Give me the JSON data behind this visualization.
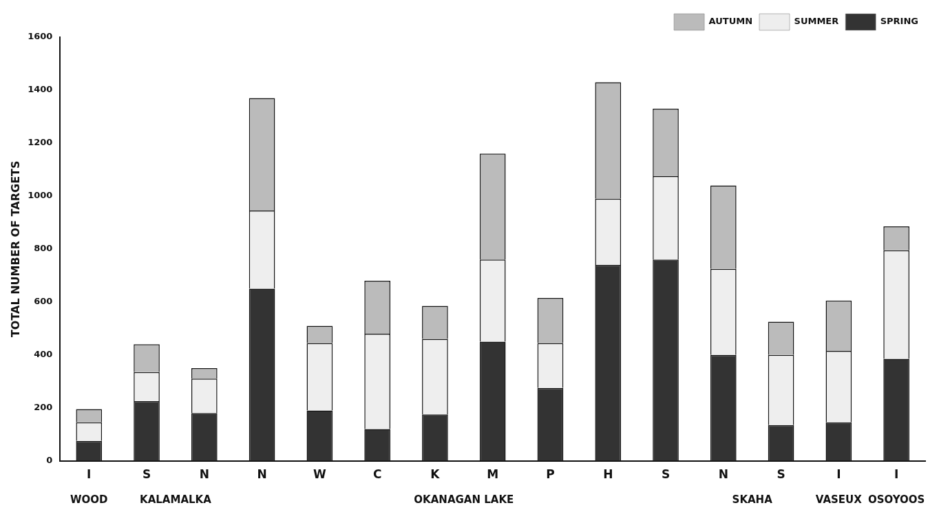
{
  "chart_data": {
    "type": "bar",
    "stacked": true,
    "ylabel": "TOTAL NUMBER OF TARGETS",
    "categories": [
      "I",
      "S",
      "N",
      "N",
      "W",
      "C",
      "K",
      "M",
      "P",
      "H",
      "S",
      "N",
      "S",
      "I",
      "I"
    ],
    "series": [
      {
        "name": "SPRING",
        "color": "#333333",
        "values": [
          75,
          225,
          180,
          650,
          190,
          120,
          175,
          450,
          275,
          740,
          760,
          400,
          135,
          145,
          385
        ]
      },
      {
        "name": "SUMMER",
        "color": "#eeeeee",
        "values": [
          70,
          110,
          130,
          295,
          255,
          360,
          285,
          310,
          170,
          250,
          315,
          325,
          265,
          270,
          410
        ]
      },
      {
        "name": "AUTUMN",
        "color": "#bbbbbb",
        "values": [
          50,
          105,
          40,
          425,
          65,
          200,
          125,
          400,
          170,
          440,
          255,
          315,
          125,
          190,
          90
        ]
      }
    ],
    "annotations": [
      "WOOD",
      "KALAMALKA",
      "OKANAGAN LAKE",
      "SKAHA",
      "VASEUX",
      "OSOYOOS"
    ],
    "ylim": [
      0,
      1600
    ],
    "yticks": [
      0,
      200,
      400,
      600,
      800,
      1000,
      1200,
      1400,
      1600
    ],
    "grid": false,
    "legend": "top right"
  }
}
